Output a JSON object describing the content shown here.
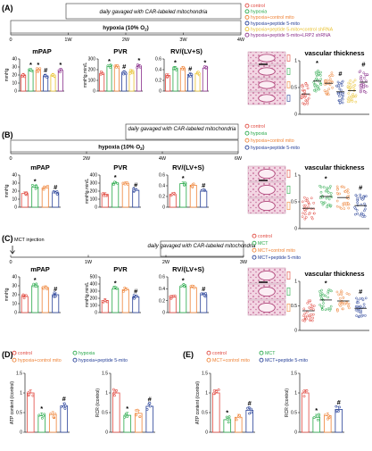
{
  "colors": {
    "control": "#e0463d",
    "hypoxia": "#27a849",
    "hypoxia_control_mito": "#ee8236",
    "hypoxia_peptide5": "#253f97",
    "peptide5_control_shrna": "#e9c230",
    "peptide5_lrp2_shrna": "#8a2f8c",
    "mct": "#27a849"
  },
  "panels": {
    "A": {
      "label": "(A)",
      "timeline": {
        "box_text": "daily gavaged with CAR-labeled mitochondria",
        "bar_text": "hypoxia (10% O",
        "bar_sub": "2",
        "bar_end": ")",
        "ticks": [
          "0",
          "1W",
          "2W",
          "3W",
          "4W"
        ]
      },
      "legend": [
        "control",
        "hypoxia",
        "hypoxia+control mito",
        "hypoxia+peptide 5-mito",
        "hypoxia+peptide 5-mito+control shRNA",
        "hypoxia+peptide 5-mito+LRP2 shRNA"
      ]
    },
    "B": {
      "label": "(B)",
      "timeline": {
        "box_text": "daily gavaged with CAR-labeled mitochondria",
        "bar_text": "hypoxia (10% O",
        "bar_sub": "2",
        "bar_end": ")",
        "ticks": [
          "0",
          "2W",
          "4W",
          "6W"
        ]
      },
      "legend": [
        "control",
        "hypoxia",
        "hypoxia+control mito",
        "hypoxia+peptide 5-mito"
      ]
    },
    "C": {
      "label": "(C)",
      "timeline": {
        "box_text": "daily gavaged with CAR-labeled mitochondria",
        "event": "MCT injection",
        "ticks": [
          "0",
          "1W",
          "2W",
          "3W"
        ]
      },
      "legend": [
        "control",
        "MCT",
        "MCT+control mito",
        "MCT+peptide 5-mito"
      ]
    },
    "D": {
      "label": "(D)",
      "legend": [
        "control",
        "hypoxia",
        "hypoxia+control mito",
        "hypoxia+peptide 5-mito"
      ]
    },
    "E": {
      "label": "(E)",
      "legend": [
        "control",
        "MCT",
        "MCT+control mito",
        "MCT+peptide 5-mito"
      ]
    }
  },
  "chart_data": [
    {
      "id": "A-mPAP",
      "type": "bar",
      "title": "mPAP",
      "ylabel": "mmHg",
      "ylim": [
        0,
        40
      ],
      "yticks": [
        0,
        10,
        20,
        30,
        40
      ],
      "groups": 6,
      "values": [
        20,
        26,
        26,
        19,
        20,
        26
      ],
      "sig": [
        "",
        "*",
        "*",
        "#",
        "",
        "*"
      ]
    },
    {
      "id": "A-PVR",
      "type": "bar",
      "title": "PVR",
      "ylabel": "mmHg.min/L",
      "ylim": [
        0,
        300
      ],
      "yticks": [
        0,
        100,
        200,
        300
      ],
      "groups": 6,
      "values": [
        165,
        228,
        232,
        176,
        182,
        233
      ],
      "sig": [
        "",
        "*",
        "",
        "#",
        "",
        "*"
      ]
    },
    {
      "id": "A-RV",
      "type": "bar",
      "title": "RV/(LV+S)",
      "ylabel": "",
      "ylim": [
        0,
        0.6
      ],
      "yticks": [
        0.0,
        0.2,
        0.4,
        0.6
      ],
      "groups": 6,
      "values": [
        0.29,
        0.43,
        0.43,
        0.31,
        0.33,
        0.43
      ],
      "sig": [
        "",
        "*",
        "",
        "#",
        "",
        "*"
      ]
    },
    {
      "id": "A-VT",
      "type": "scatter",
      "title": "vascular thickness",
      "ylabel": "",
      "ylim": [
        0,
        1.0
      ],
      "yticks": [
        0.0,
        0.5,
        1.0
      ],
      "groups": 6,
      "values": [
        0.38,
        0.62,
        0.58,
        0.42,
        0.44,
        0.6
      ],
      "sig": [
        "",
        "*",
        "",
        "#",
        "",
        "#"
      ]
    },
    {
      "id": "B-mPAP",
      "type": "bar",
      "title": "mPAP",
      "ylabel": "mmHg",
      "ylim": [
        0,
        40
      ],
      "yticks": [
        0,
        10,
        20,
        30,
        40
      ],
      "groups": 4,
      "values": [
        17,
        25,
        24,
        18
      ],
      "sig": [
        "",
        "*",
        "",
        "#"
      ]
    },
    {
      "id": "B-PVR",
      "type": "bar",
      "title": "PVR",
      "ylabel": "mmHg.min/L",
      "ylim": [
        0,
        400
      ],
      "yticks": [
        0,
        100,
        200,
        300,
        400
      ],
      "groups": 4,
      "values": [
        160,
        300,
        295,
        210
      ],
      "sig": [
        "",
        "*",
        "",
        "#"
      ]
    },
    {
      "id": "B-RV",
      "type": "bar",
      "title": "RV/(LV+S)",
      "ylabel": "",
      "ylim": [
        0,
        0.6
      ],
      "yticks": [
        0.0,
        0.2,
        0.4,
        0.6
      ],
      "groups": 4,
      "values": [
        0.24,
        0.44,
        0.41,
        0.3
      ],
      "sig": [
        "",
        "*",
        "",
        "#"
      ]
    },
    {
      "id": "B-VT",
      "type": "scatter",
      "title": "vascular thickness",
      "ylabel": "",
      "ylim": [
        0,
        1.0
      ],
      "yticks": [
        0.0,
        0.5,
        1.0
      ],
      "groups": 4,
      "values": [
        0.38,
        0.6,
        0.58,
        0.43
      ],
      "sig": [
        "",
        "*",
        "",
        "#"
      ]
    },
    {
      "id": "C-mPAP",
      "type": "bar",
      "title": "mPAP",
      "ylabel": "mmHg",
      "ylim": [
        0,
        40
      ],
      "yticks": [
        0,
        10,
        20,
        30,
        40
      ],
      "groups": 4,
      "values": [
        18,
        30,
        28,
        20
      ],
      "sig": [
        "",
        "*",
        "",
        "#"
      ]
    },
    {
      "id": "C-PVR",
      "type": "bar",
      "title": "PVR",
      "ylabel": "mmHg.min/L",
      "ylim": [
        0,
        500
      ],
      "yticks": [
        0,
        100,
        200,
        300,
        400,
        500
      ],
      "groups": 4,
      "values": [
        170,
        330,
        320,
        220
      ],
      "sig": [
        "",
        "*",
        "",
        "#"
      ]
    },
    {
      "id": "C-RV",
      "type": "bar",
      "title": "RV/(LV+S)",
      "ylabel": "",
      "ylim": [
        0,
        0.6
      ],
      "yticks": [
        0.0,
        0.2,
        0.4,
        0.6
      ],
      "groups": 4,
      "values": [
        0.26,
        0.44,
        0.42,
        0.3
      ],
      "sig": [
        "",
        "*",
        "",
        "#"
      ]
    },
    {
      "id": "C-VT",
      "type": "scatter",
      "title": "vascular thickness",
      "ylabel": "",
      "ylim": [
        0,
        1.0
      ],
      "yticks": [
        0.0,
        0.5,
        1.0
      ],
      "groups": 4,
      "values": [
        0.4,
        0.62,
        0.6,
        0.45
      ],
      "sig": [
        "",
        "*",
        "",
        "#"
      ]
    },
    {
      "id": "D-ATP",
      "type": "bar",
      "title": "",
      "ylabel": "ATP content (/control)",
      "ylim": [
        0,
        1.5
      ],
      "yticks": [
        0.0,
        0.5,
        1.0,
        1.5
      ],
      "groups": 4,
      "values": [
        1.0,
        0.42,
        0.45,
        0.67
      ],
      "sig": [
        "",
        "*",
        "",
        "#"
      ]
    },
    {
      "id": "D-RCR",
      "type": "bar",
      "title": "",
      "ylabel": "RCR (/control)",
      "ylim": [
        0,
        1.5
      ],
      "yticks": [
        0.0,
        0.5,
        1.0,
        1.5
      ],
      "groups": 4,
      "values": [
        1.0,
        0.43,
        0.48,
        0.66
      ],
      "sig": [
        "",
        "*",
        "",
        "#"
      ]
    },
    {
      "id": "E-ATP",
      "type": "bar",
      "title": "",
      "ylabel": "ATP content (/control)",
      "ylim": [
        0,
        1.5
      ],
      "yticks": [
        0.0,
        0.5,
        1.0,
        1.5
      ],
      "groups": 4,
      "values": [
        1.0,
        0.32,
        0.38,
        0.56
      ],
      "sig": [
        "",
        "*",
        "",
        "#"
      ]
    },
    {
      "id": "E-RCR",
      "type": "bar",
      "title": "",
      "ylabel": "RCR (/control)",
      "ylim": [
        0,
        1.5
      ],
      "yticks": [
        0.0,
        0.5,
        1.0,
        1.5
      ],
      "groups": 4,
      "values": [
        1.0,
        0.38,
        0.42,
        0.58
      ],
      "sig": [
        "",
        "*",
        "",
        "#"
      ]
    }
  ]
}
